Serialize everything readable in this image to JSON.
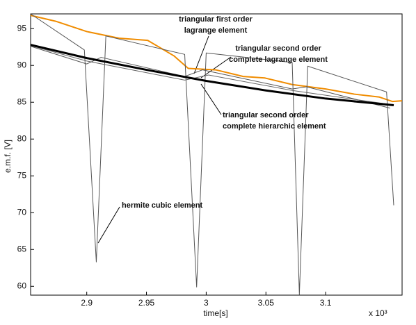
{
  "chart_data": {
    "type": "line",
    "x_label": "time[s]",
    "y_label": "e.m.f. [V]",
    "x_multiplier": "x 10³",
    "xlim": [
      2.853,
      3.164
    ],
    "ylim": [
      58.8,
      97.0
    ],
    "xticks": [
      2.9,
      2.95,
      3,
      3.05,
      3.1
    ],
    "yticks": [
      60,
      65,
      70,
      75,
      80,
      85,
      90,
      95
    ],
    "series": [
      {
        "color": "#f08c00",
        "width": 2,
        "x": [
          2.853,
          2.874,
          2.9,
          2.927,
          2.951,
          2.973,
          2.985,
          3.008,
          3.031,
          3.049,
          3.072,
          3.1,
          3.124,
          3.145,
          3.156,
          3.164
        ],
        "values": [
          96.8,
          96.0,
          94.6,
          93.7,
          93.4,
          91.3,
          89.6,
          89.4,
          88.5,
          88.3,
          87.4,
          86.8,
          86.1,
          85.7,
          85.1,
          85.2
        ]
      },
      {
        "color": "#555555",
        "width": 1,
        "x": [
          2.853,
          2.898,
          2.908,
          2.916,
          2.982,
          2.992,
          3.0,
          3.072,
          3.078,
          3.085,
          3.151,
          3.157
        ],
        "values": [
          97.0,
          92.1,
          63.3,
          94.0,
          91.5,
          59.9,
          91.7,
          90.4,
          58.9,
          89.9,
          86.4,
          71.0
        ]
      },
      {
        "color": "#555555",
        "width": 1,
        "x": [
          2.853,
          2.9,
          2.912,
          2.982,
          2.997,
          3.072,
          3.084,
          3.154
        ],
        "values": [
          92.6,
          90.2,
          91.1,
          88.5,
          89.4,
          86.8,
          87.1,
          84.2
        ]
      },
      {
        "color": "#666666",
        "width": 1,
        "x": [
          2.853,
          2.9,
          2.982,
          3.002,
          3.072,
          3.154
        ],
        "values": [
          92.7,
          90.6,
          88.0,
          88.7,
          86.6,
          84.7
        ]
      },
      {
        "color": "#000000",
        "width": 3,
        "x": [
          2.853,
          2.9,
          2.95,
          3.0,
          3.05,
          3.1,
          3.157
        ],
        "values": [
          92.8,
          91.0,
          89.4,
          87.9,
          86.6,
          85.5,
          84.6
        ]
      }
    ],
    "annotations": [
      {
        "text": [
          "triangular first order",
          "lagrange element"
        ]
      },
      {
        "text": [
          "triangular second order",
          "complete lagrange element"
        ]
      },
      {
        "text": [
          "triangular second order",
          "complete hierarchic element"
        ]
      },
      {
        "text": [
          "hermite cubic element"
        ]
      }
    ]
  }
}
